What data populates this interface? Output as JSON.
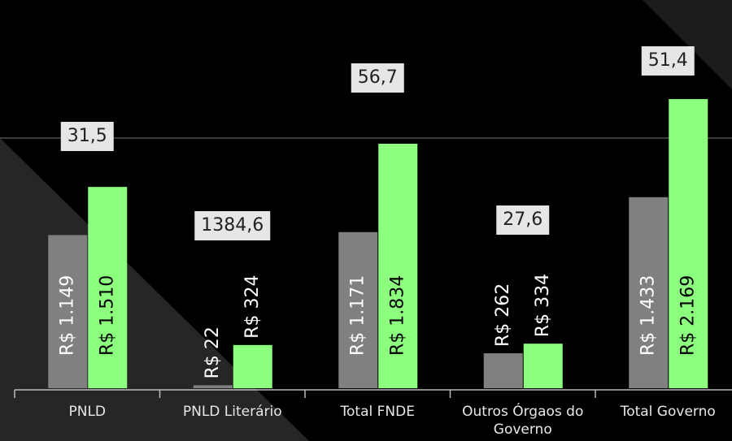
{
  "chart_data": {
    "type": "bar",
    "categories": [
      "PNLD",
      "PNLD Literário",
      "Total FNDE",
      "Outros Órgaos do Governo",
      "Total Governo"
    ],
    "series": [
      {
        "color": "#808080",
        "values": [
          1149,
          22,
          1171,
          262,
          1433
        ],
        "value_labels": [
          "R$ 1.149",
          "R$ 22",
          "R$ 1.171",
          "R$ 262",
          "R$ 1.433"
        ]
      },
      {
        "color": "#8cff7e",
        "values": [
          1510,
          324,
          1834,
          334,
          2169
        ],
        "value_labels": [
          "R$ 1.510",
          "R$ 324",
          "R$ 1.834",
          "R$ 334",
          "R$ 2.169"
        ]
      }
    ],
    "annotations": [
      "31,5",
      "1384,6",
      "56,7",
      "27,6",
      "51,4"
    ]
  }
}
